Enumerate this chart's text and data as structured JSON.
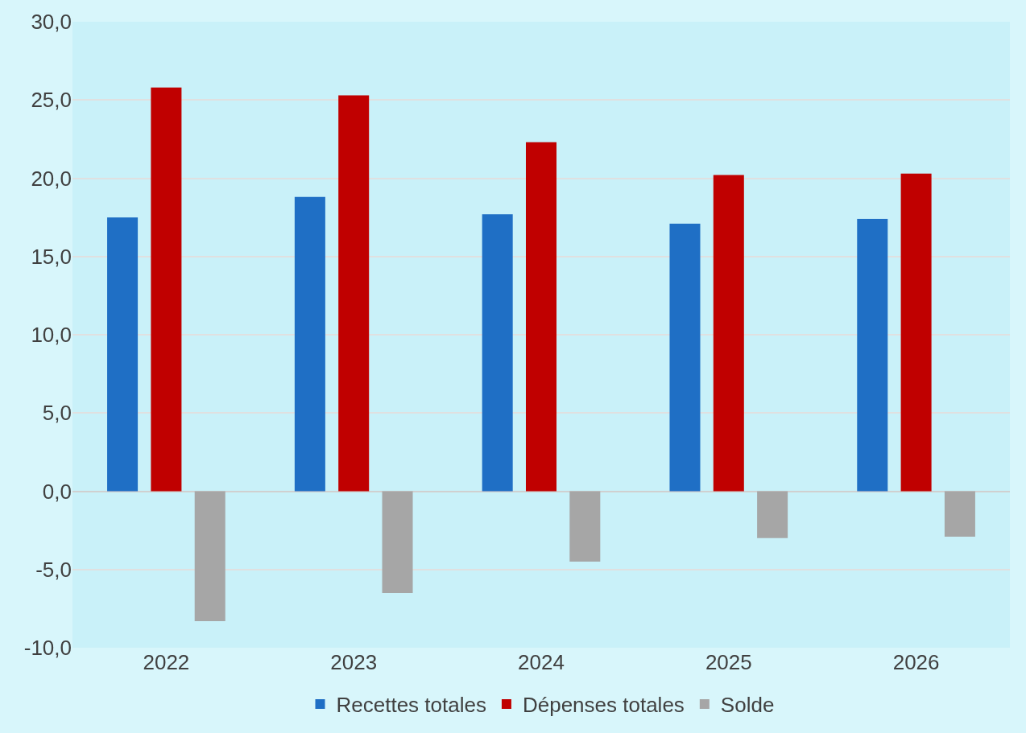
{
  "chart_data": {
    "type": "bar",
    "categories": [
      "2022",
      "2023",
      "2024",
      "2025",
      "2026"
    ],
    "series": [
      {
        "name": "Recettes totales",
        "color": "#1f6fc5",
        "values": [
          17.5,
          18.8,
          17.7,
          17.1,
          17.4
        ]
      },
      {
        "name": "Dépenses totales",
        "color": "#c00000",
        "values": [
          25.8,
          25.3,
          22.3,
          20.2,
          20.3
        ]
      },
      {
        "name": "Solde",
        "color": "#a6a6a6",
        "values": [
          -8.3,
          -6.5,
          -4.5,
          -3.0,
          -2.9
        ]
      }
    ],
    "ylim": [
      -10,
      30
    ],
    "yticks": [
      {
        "value": -10,
        "label": "-10,0"
      },
      {
        "value": -5,
        "label": "-5,0"
      },
      {
        "value": 0,
        "label": "0,0"
      },
      {
        "value": 5,
        "label": "5,0"
      },
      {
        "value": 10,
        "label": "10,0"
      },
      {
        "value": 15,
        "label": "15,0"
      },
      {
        "value": 20,
        "label": "20,0"
      },
      {
        "value": 25,
        "label": "25,0"
      },
      {
        "value": 30,
        "label": "30,0"
      }
    ],
    "grid": "y",
    "legend": "bottom"
  }
}
